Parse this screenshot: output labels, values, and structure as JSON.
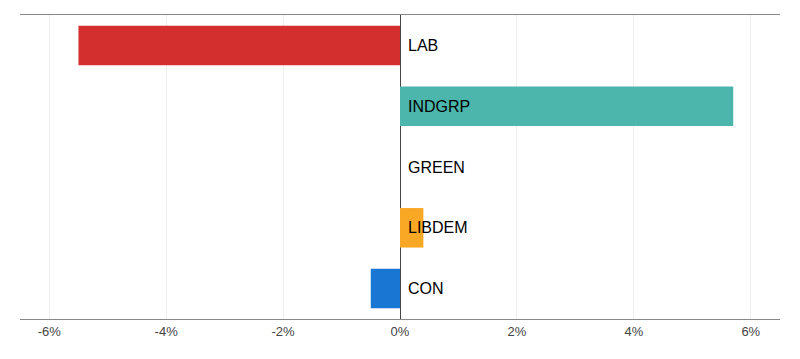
{
  "chart_data": {
    "type": "bar",
    "orientation": "horizontal",
    "categories": [
      "LAB",
      "INDGRP",
      "GREEN",
      "LIBDEM",
      "CON"
    ],
    "values": [
      -5.5,
      5.7,
      0.0,
      0.4,
      -0.5
    ],
    "colors": [
      "#d32f2f",
      "#4db6ac",
      "#ffffff",
      "#f9a825",
      "#1976d2"
    ],
    "xlim": [
      -6.5,
      6.5
    ],
    "xticks": [
      {
        "value": -6,
        "label": "-6%"
      },
      {
        "value": -4,
        "label": "-4%"
      },
      {
        "value": -2,
        "label": "-2%"
      },
      {
        "value": 0,
        "label": "0%"
      },
      {
        "value": 2,
        "label": "2%"
      },
      {
        "value": 4,
        "label": "4%"
      },
      {
        "value": 6,
        "label": "6%"
      }
    ],
    "grid": true,
    "tick_labels": "x"
  }
}
